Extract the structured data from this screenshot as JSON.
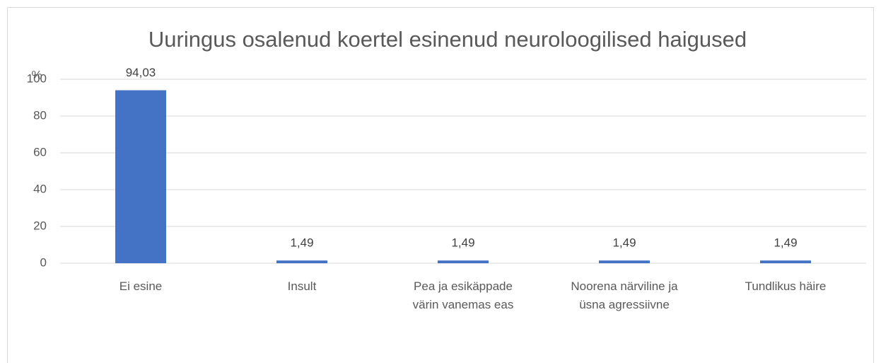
{
  "chart_data": {
    "type": "bar",
    "title": "Uuringus osalenud koertel esinenud neuroloogilised haigused",
    "y_label": "%",
    "categories": [
      "Ei esine",
      "Insult",
      "Pea ja esikäppade värin vanemas eas",
      "Noorena närviline ja üsna agressiivne",
      "Tundlikus häire"
    ],
    "values": [
      94.03,
      1.49,
      1.49,
      1.49,
      1.49
    ],
    "value_labels": [
      "94,03",
      "1,49",
      "1,49",
      "1,49",
      "1,49"
    ],
    "color": "#4472c4",
    "ylim": [
      0,
      100
    ],
    "yticks": [
      0,
      20,
      40,
      60,
      80,
      100
    ],
    "grid": true
  }
}
